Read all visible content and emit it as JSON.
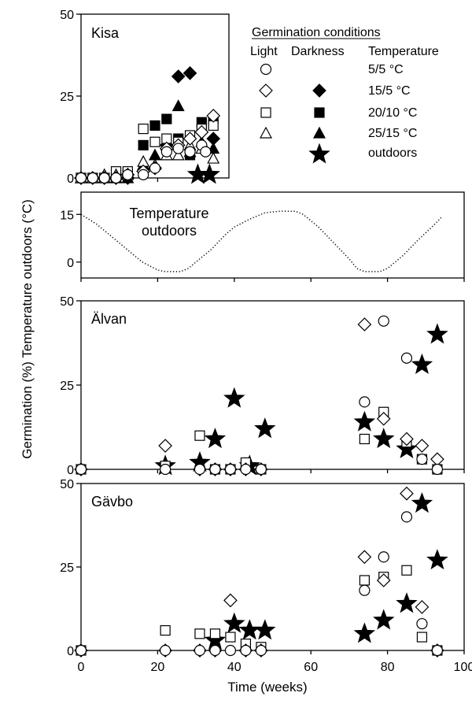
{
  "figure": {
    "ylabel": "Germination (%) Temperature outdoors (°C)",
    "xlabel": "Time (weeks)",
    "x_ticks": [
      0,
      20,
      40,
      60,
      80,
      100
    ]
  },
  "legend": {
    "title": "Germination conditions",
    "col_light": "Light",
    "col_dark": "Darkness",
    "col_temp": "Temperature",
    "rows": [
      {
        "label": "5/5 °C",
        "light": "circle",
        "dark": ""
      },
      {
        "label": "15/5 °C",
        "light": "diamond",
        "dark": "diamond"
      },
      {
        "label": "20/10 °C",
        "light": "square",
        "dark": "square"
      },
      {
        "label": "25/15 °C",
        "light": "triangle",
        "dark": "triangle"
      },
      {
        "label": "outdoors",
        "light": "",
        "dark": "star"
      }
    ]
  },
  "chart_data": [
    {
      "type": "scatter",
      "title": "Kisa",
      "xlim": [
        0,
        38
      ],
      "ylim": [
        0,
        50
      ],
      "y_ticks": [
        0,
        25,
        50
      ],
      "series": [
        {
          "name": "5/5 °C",
          "condition": "light",
          "marker": "circle",
          "filled": false,
          "x": [
            0,
            3,
            6,
            9,
            12,
            16,
            19,
            22,
            25,
            28,
            31,
            32
          ],
          "y": [
            0,
            0,
            0,
            0,
            1,
            1,
            3,
            8,
            9,
            8,
            10,
            8
          ]
        },
        {
          "name": "15/5 °C",
          "condition": "light",
          "marker": "diamond",
          "filled": false,
          "x": [
            0,
            3,
            6,
            9,
            12,
            16,
            19,
            22,
            25,
            28,
            31,
            34
          ],
          "y": [
            0,
            0,
            0,
            0,
            1,
            2,
            3,
            9,
            10,
            12,
            14,
            19
          ]
        },
        {
          "name": "20/10 °C",
          "condition": "light",
          "marker": "square",
          "filled": false,
          "x": [
            0,
            3,
            6,
            9,
            12,
            16,
            19,
            22,
            25,
            28,
            31,
            34
          ],
          "y": [
            0,
            0,
            0,
            2,
            2,
            15,
            11,
            12,
            11,
            13,
            15,
            16
          ]
        },
        {
          "name": "25/15 °C",
          "condition": "light",
          "marker": "triangle",
          "filled": false,
          "x": [
            0,
            3,
            6,
            9,
            12,
            16,
            19,
            22,
            25,
            28,
            31,
            34
          ],
          "y": [
            0,
            0,
            1,
            1,
            1,
            5,
            4,
            7,
            7,
            10,
            9,
            6
          ]
        },
        {
          "name": "15/5 °C",
          "condition": "darkness",
          "marker": "diamond",
          "filled": true,
          "x": [
            0,
            3,
            6,
            9,
            12,
            16,
            19,
            22,
            25,
            28,
            31,
            34
          ],
          "y": [
            0,
            0,
            0,
            0,
            0,
            2,
            3,
            10,
            31,
            32,
            14,
            12
          ]
        },
        {
          "name": "20/10 °C",
          "condition": "darkness",
          "marker": "square",
          "filled": true,
          "x": [
            0,
            3,
            6,
            9,
            12,
            16,
            19,
            22,
            25,
            28,
            31,
            34
          ],
          "y": [
            0,
            0,
            0,
            0,
            1,
            10,
            16,
            18,
            12,
            7,
            17,
            18
          ]
        },
        {
          "name": "25/15 °C",
          "condition": "darkness",
          "marker": "triangle",
          "filled": true,
          "x": [
            0,
            3,
            6,
            9,
            12,
            16,
            19,
            22,
            25,
            28,
            31,
            34
          ],
          "y": [
            0,
            0,
            0,
            0,
            0,
            4,
            7,
            10,
            22,
            8,
            11,
            9
          ]
        },
        {
          "name": "outdoors",
          "condition": "darkness",
          "marker": "star",
          "filled": true,
          "x": [
            30,
            33
          ],
          "y": [
            1,
            1
          ]
        }
      ]
    },
    {
      "type": "line",
      "title": "Temperature outdoors",
      "xlim": [
        0,
        100
      ],
      "ylim": [
        -5,
        22
      ],
      "y_ticks": [
        0,
        15
      ],
      "line_style": "dotted",
      "series": [
        {
          "name": "Temperature outdoors",
          "x": [
            0,
            4,
            8,
            12,
            16,
            20,
            22,
            24,
            26,
            28,
            30,
            32,
            34,
            36,
            38,
            40,
            44,
            48,
            52,
            54,
            56,
            58,
            60,
            62,
            64,
            66,
            68,
            70,
            72,
            74,
            76,
            78,
            80,
            84,
            88,
            92,
            94
          ],
          "y": [
            15,
            12,
            8,
            4,
            0,
            -2.5,
            -3,
            -3,
            -3,
            -2,
            0,
            2,
            4,
            6.5,
            9,
            11,
            13.5,
            15.5,
            16,
            16,
            16,
            15,
            13,
            11,
            8.5,
            6,
            3.5,
            1,
            -2,
            -3,
            -3,
            -3,
            -2,
            2,
            7,
            11.5,
            14
          ]
        }
      ]
    },
    {
      "type": "scatter",
      "title": "Älvan",
      "xlim": [
        0,
        100
      ],
      "ylim": [
        0,
        50
      ],
      "y_ticks": [
        0,
        25,
        50
      ],
      "series": [
        {
          "name": "5/5 °C",
          "condition": "light",
          "marker": "circle",
          "filled": false,
          "x": [
            0,
            22,
            31,
            35,
            39,
            43,
            47,
            74,
            79,
            85,
            89,
            93
          ],
          "y": [
            0,
            0,
            0,
            0,
            0,
            0,
            0,
            20,
            44,
            33,
            3,
            0
          ]
        },
        {
          "name": "15/5 °C",
          "condition": "light",
          "marker": "diamond",
          "filled": false,
          "x": [
            0,
            22,
            31,
            35,
            39,
            43,
            47,
            74,
            79,
            85,
            89,
            93
          ],
          "y": [
            0,
            7,
            0,
            0,
            0,
            0,
            0,
            43,
            15,
            9,
            7,
            3
          ]
        },
        {
          "name": "20/10 °C",
          "condition": "light",
          "marker": "square",
          "filled": false,
          "x": [
            0,
            22,
            31,
            35,
            39,
            43,
            47,
            74,
            79,
            85,
            89,
            93
          ],
          "y": [
            0,
            1,
            10,
            0,
            0,
            2,
            0,
            9,
            17,
            8,
            3,
            0
          ]
        },
        {
          "name": "outdoors",
          "condition": "darkness",
          "marker": "star",
          "filled": true,
          "x": [
            22,
            31,
            35,
            40,
            44,
            48,
            74,
            79,
            85,
            89,
            93
          ],
          "y": [
            1,
            2,
            9,
            21,
            1,
            12,
            14,
            9,
            6,
            31,
            40
          ]
        }
      ]
    },
    {
      "type": "scatter",
      "title": "Gävbo",
      "xlim": [
        0,
        100
      ],
      "ylim": [
        0,
        50
      ],
      "y_ticks": [
        0,
        25,
        50
      ],
      "series": [
        {
          "name": "5/5 °C",
          "condition": "light",
          "marker": "circle",
          "filled": false,
          "x": [
            0,
            22,
            31,
            35,
            39,
            43,
            47,
            74,
            79,
            85,
            89,
            93
          ],
          "y": [
            0,
            0,
            0,
            0,
            0,
            0,
            0,
            18,
            28,
            40,
            8,
            0
          ]
        },
        {
          "name": "15/5 °C",
          "condition": "light",
          "marker": "diamond",
          "filled": false,
          "x": [
            0,
            22,
            31,
            35,
            39,
            43,
            47,
            74,
            79,
            85,
            89,
            93
          ],
          "y": [
            0,
            0,
            0,
            0,
            15,
            0,
            0,
            28,
            21,
            47,
            13,
            0
          ]
        },
        {
          "name": "20/10 °C",
          "condition": "light",
          "marker": "square",
          "filled": false,
          "x": [
            0,
            22,
            31,
            35,
            39,
            43,
            47,
            74,
            79,
            85,
            89,
            93
          ],
          "y": [
            0,
            6,
            5,
            5,
            4,
            2,
            1,
            21,
            22,
            24,
            4,
            0
          ]
        },
        {
          "name": "outdoors",
          "condition": "darkness",
          "marker": "star",
          "filled": true,
          "x": [
            35,
            40,
            44,
            48,
            74,
            79,
            85,
            89,
            93
          ],
          "y": [
            3,
            8,
            6,
            6,
            5,
            9,
            14,
            44,
            27
          ]
        }
      ]
    }
  ]
}
